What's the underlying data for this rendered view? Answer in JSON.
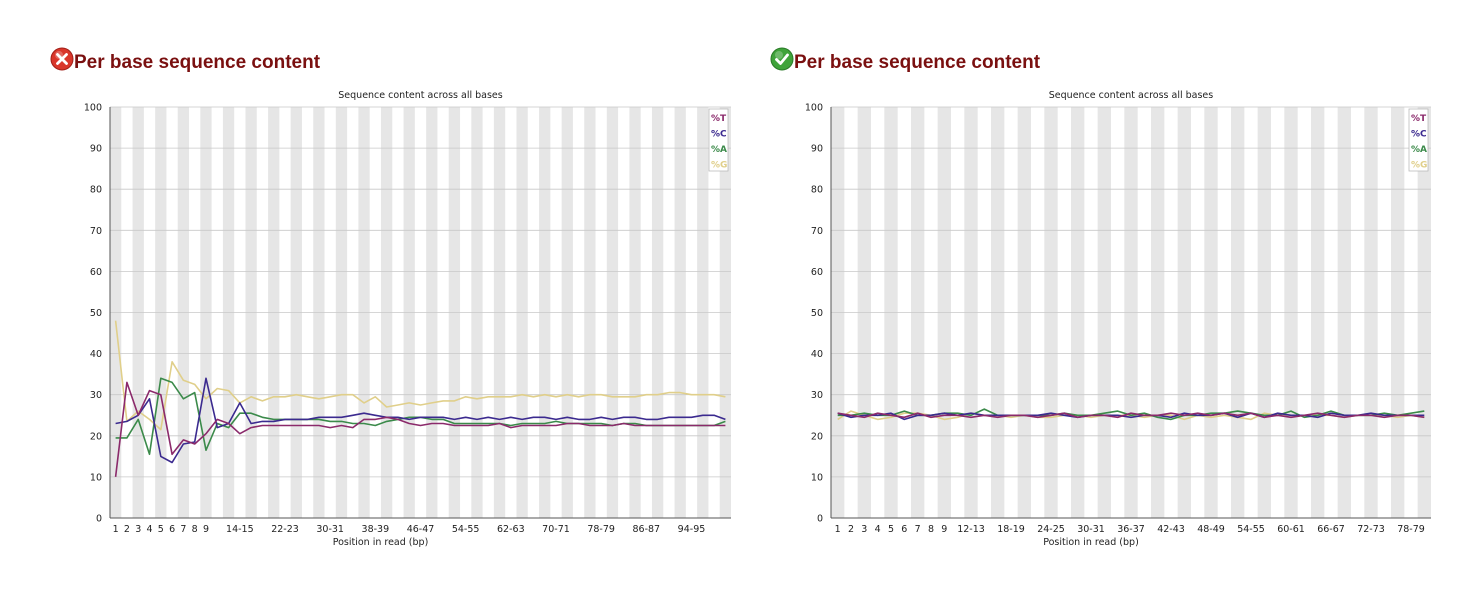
{
  "charts": [
    {
      "heading": "Per base sequence content",
      "status": "fail",
      "status_icon": "error-icon",
      "chart_data": {
        "type": "line",
        "title": "Sequence content across all bases",
        "xlabel": "Position in read (bp)",
        "ylabel": "",
        "ylim": [
          0,
          100
        ],
        "yticks": [
          0,
          10,
          20,
          30,
          40,
          50,
          60,
          70,
          80,
          90,
          100
        ],
        "grid": "horizontal",
        "legend_position": "top-right",
        "categories": [
          "1",
          "2",
          "3",
          "4",
          "5",
          "6",
          "7",
          "8",
          "9",
          "10-11",
          "12-13",
          "14-15",
          "16-17",
          "18-19",
          "20-21",
          "22-23",
          "24-25",
          "26-27",
          "28-29",
          "30-31",
          "32-33",
          "34-35",
          "36-37",
          "38-39",
          "40-41",
          "42-43",
          "44-45",
          "46-47",
          "48-49",
          "50-51",
          "52-53",
          "54-55",
          "56-57",
          "58-59",
          "60-61",
          "62-63",
          "64-65",
          "66-67",
          "68-69",
          "70-71",
          "72-73",
          "74-75",
          "76-77",
          "78-79",
          "80-81",
          "82-83",
          "84-85",
          "86-87",
          "88-89",
          "90-91",
          "92-93",
          "94-95",
          "96-97",
          "98-99",
          "100-101"
        ],
        "shown_tick_labels": [
          "1",
          "2",
          "3",
          "4",
          "5",
          "6",
          "7",
          "8",
          "9",
          "14-15",
          "22-23",
          "30-31",
          "38-39",
          "46-47",
          "54-55",
          "62-63",
          "70-71",
          "78-79",
          "86-87",
          "94-95"
        ],
        "series": [
          {
            "name": "%T",
            "color": "#8b2a6b",
            "values": [
              10,
              33,
              25,
              31,
              30,
              15.5,
              19,
              18,
              20.5,
              24,
              23,
              20.5,
              22,
              22.5,
              22.5,
              22.5,
              22.5,
              22.5,
              22.5,
              22,
              22.5,
              22,
              24,
              24,
              24.5,
              24,
              23,
              22.5,
              23,
              23,
              22.5,
              22.5,
              22.5,
              22.5,
              23,
              22,
              22.5,
              22.5,
              22.5,
              22.5,
              23,
              23,
              22.5,
              22.5,
              22.5,
              23,
              22.5,
              22.5,
              22.5,
              22.5,
              22.5,
              22.5,
              22.5,
              22.5,
              22.5
            ]
          },
          {
            "name": "%C",
            "color": "#3b2a8f",
            "values": [
              23,
              23.5,
              25,
              29,
              15,
              13.5,
              18,
              18.5,
              34,
              22,
              23,
              28,
              23,
              23.5,
              23.5,
              24,
              24,
              24,
              24.5,
              24.5,
              24.5,
              25,
              25.5,
              25,
              24.5,
              24.5,
              24,
              24.5,
              24.5,
              24.5,
              24,
              24.5,
              24,
              24.5,
              24,
              24.5,
              24,
              24.5,
              24.5,
              24,
              24.5,
              24,
              24,
              24.5,
              24,
              24.5,
              24.5,
              24,
              24,
              24.5,
              24.5,
              24.5,
              25,
              25,
              24
            ]
          },
          {
            "name": "%A",
            "color": "#3b8a4a",
            "values": [
              19.5,
              19.5,
              24,
              15.5,
              34,
              33,
              29,
              30.5,
              16.5,
              23,
              22,
              25.5,
              25.5,
              24.5,
              24,
              24,
              24,
              24,
              24,
              23.5,
              23.5,
              23,
              23,
              22.5,
              23.5,
              24,
              24.5,
              24.5,
              24,
              24,
              23,
              23,
              23,
              23,
              23,
              22.5,
              23,
              23,
              23,
              23.5,
              23,
              23,
              23,
              23,
              22.5,
              23,
              23,
              22.5,
              22.5,
              22.5,
              22.5,
              22.5,
              22.5,
              22.5,
              23.5
            ]
          },
          {
            "name": "%G",
            "color": "#e0cf8a",
            "values": [
              48,
              23.5,
              26,
              24,
              21.5,
              38,
              33.5,
              32.5,
              29,
              31.5,
              31,
              28,
              29.5,
              28.5,
              29.5,
              29.5,
              30,
              29.5,
              29,
              29.5,
              30,
              30,
              28,
              29.5,
              27,
              27.5,
              28,
              27.5,
              28,
              28.5,
              28.5,
              29.5,
              29,
              29.5,
              29.5,
              29.5,
              30,
              29.5,
              30,
              29.5,
              30,
              29.5,
              30,
              30,
              29.5,
              29.5,
              29.5,
              30,
              30,
              30.5,
              30.5,
              30,
              30,
              30,
              29.5
            ]
          }
        ]
      }
    },
    {
      "heading": "Per base sequence content",
      "status": "pass",
      "status_icon": "check-icon",
      "chart_data": {
        "type": "line",
        "title": "Sequence content across all bases",
        "xlabel": "Position in read (bp)",
        "ylabel": "",
        "ylim": [
          0,
          100
        ],
        "yticks": [
          0,
          10,
          20,
          30,
          40,
          50,
          60,
          70,
          80,
          90,
          100
        ],
        "grid": "horizontal",
        "legend_position": "top-right",
        "categories": [
          "1",
          "2",
          "3",
          "4",
          "5",
          "6",
          "7",
          "8",
          "9",
          "10-11",
          "12-13",
          "14-15",
          "16-17",
          "18-19",
          "20-21",
          "22-23",
          "24-25",
          "26-27",
          "28-29",
          "30-31",
          "32-33",
          "34-35",
          "36-37",
          "38-39",
          "40-41",
          "42-43",
          "44-45",
          "46-47",
          "48-49",
          "50-51",
          "52-53",
          "54-55",
          "56-57",
          "58-59",
          "60-61",
          "62-63",
          "64-65",
          "66-67",
          "68-69",
          "70-71",
          "72-73",
          "74-75",
          "76-77",
          "78-79",
          "80-81"
        ],
        "shown_tick_labels": [
          "1",
          "2",
          "3",
          "4",
          "5",
          "6",
          "7",
          "8",
          "9",
          "12-13",
          "18-19",
          "24-25",
          "30-31",
          "36-37",
          "42-43",
          "48-49",
          "54-55",
          "60-61",
          "66-67",
          "72-73",
          "78-79"
        ],
        "series": [
          {
            "name": "%T",
            "color": "#8b2a6b",
            "values": [
              25.5,
              25,
              24.5,
              25.5,
              25,
              24.5,
              25.5,
              24.5,
              25,
              25,
              24.5,
              25,
              24.5,
              25,
              25,
              24.5,
              25,
              25.5,
              24.5,
              25,
              25,
              24.5,
              25.5,
              25,
              25,
              25.5,
              25,
              25.5,
              25,
              25.5,
              25,
              25.5,
              24.5,
              25,
              24.5,
              25,
              25.5,
              25,
              24.5,
              25,
              25,
              24.5,
              25,
              25,
              24.5
            ]
          },
          {
            "name": "%C",
            "color": "#3b2a8f",
            "values": [
              25.5,
              24.5,
              25,
              25,
              25.5,
              24,
              25,
              25,
              25.5,
              25,
              25.5,
              25,
              25,
              25,
              25,
              25,
              25.5,
              25,
              24.5,
              25,
              25,
              25,
              24.5,
              25,
              25,
              24.5,
              25.5,
              25,
              25,
              25.5,
              24.5,
              25.5,
              24.5,
              25.5,
              25,
              25,
              24.5,
              25.5,
              25,
              25,
              25.5,
              25,
              25,
              25,
              25
            ]
          },
          {
            "name": "%A",
            "color": "#3b8a4a",
            "values": [
              25,
              25,
              25.5,
              25,
              25,
              26,
              25,
              25,
              25.5,
              25.5,
              25,
              26.5,
              25,
              25,
              25,
              25,
              25,
              25.5,
              25,
              25,
              25.5,
              26,
              25,
              25.5,
              24.5,
              24,
              25,
              25,
              25.5,
              25.5,
              26,
              25.5,
              25,
              25,
              26,
              24.5,
              25,
              26,
              25,
              25,
              25,
              25.5,
              25,
              25.5,
              26
            ]
          },
          {
            "name": "%G",
            "color": "#e0cf8a",
            "values": [
              24,
              26,
              25,
              24,
              24.5,
              25.5,
              25.5,
              25,
              24,
              24.5,
              25.5,
              25,
              25,
              24.5,
              25,
              24.5,
              24.5,
              25,
              25,
              24.5,
              25,
              25,
              25,
              24.5,
              25,
              25,
              24,
              25,
              24.5,
              25,
              24.5,
              24,
              25.5,
              25,
              25,
              25,
              25,
              25,
              24.5,
              25,
              25,
              25,
              24.5,
              25,
              24.5
            ]
          }
        ]
      }
    }
  ]
}
